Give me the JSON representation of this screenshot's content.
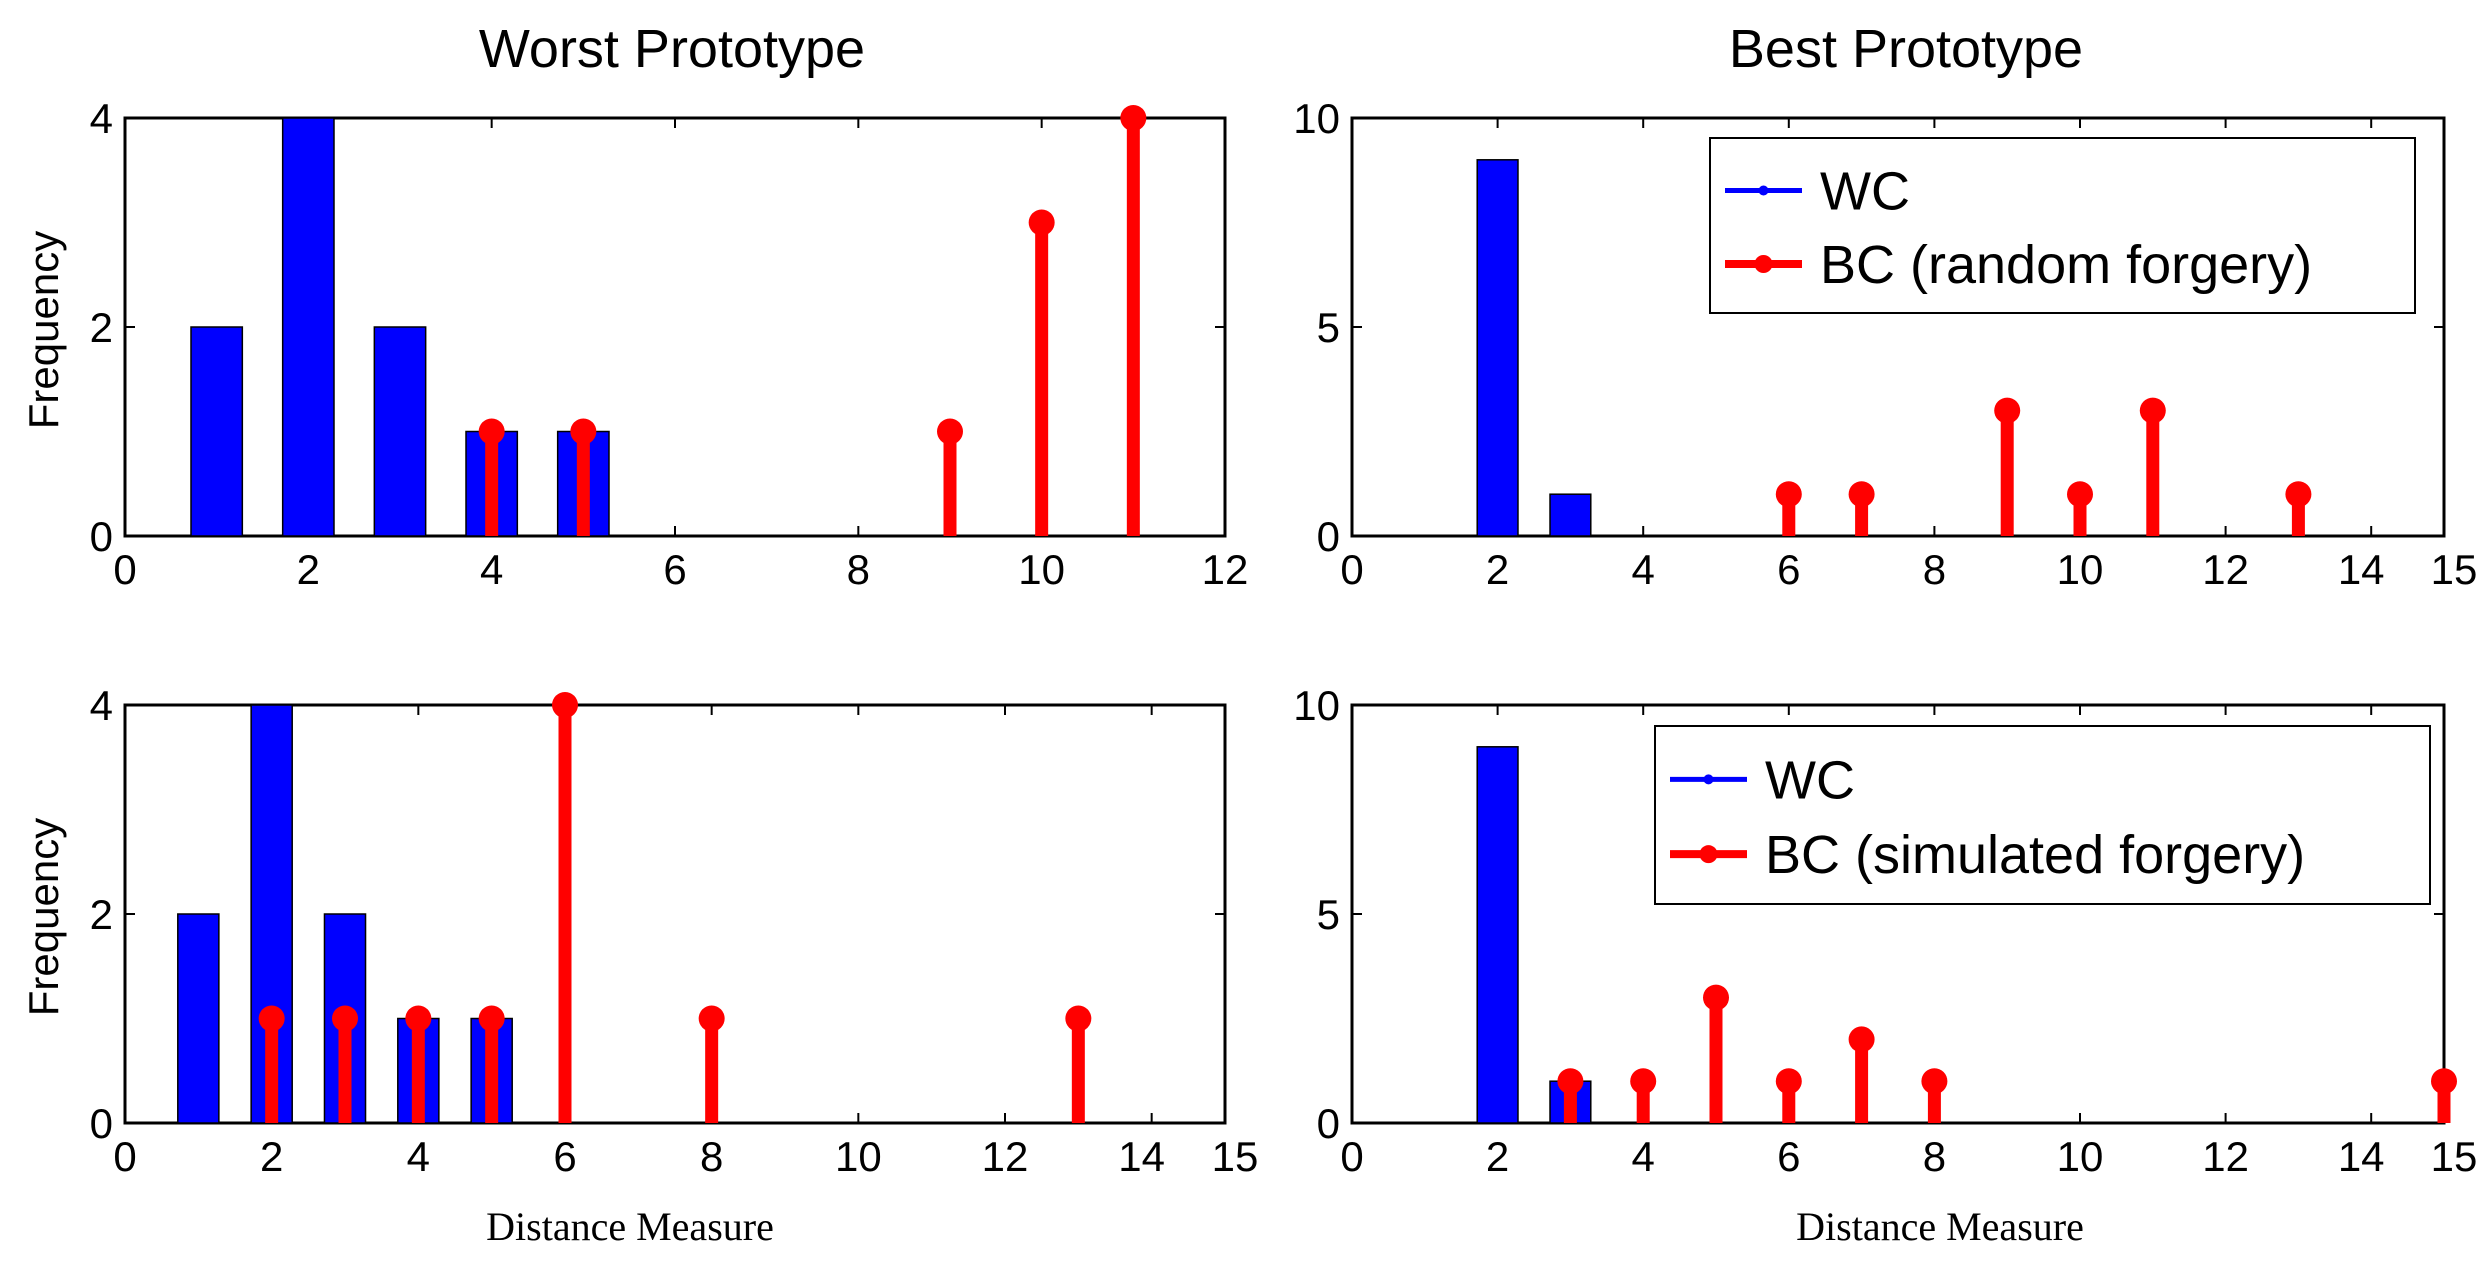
{
  "figure": {
    "col_titles": [
      "Worst Prototype",
      "Best Prototype"
    ],
    "ylabel": "Frequency",
    "xlabel": "Distance Measure"
  },
  "colors": {
    "wc": "#0000ff",
    "bc": "#ff0000",
    "axis": "#000000"
  },
  "chart_data": [
    {
      "id": "worst-random",
      "type": "bar",
      "title": "Worst Prototype",
      "ylabel": "Frequency",
      "xlabel": "",
      "xlim": [
        0,
        12
      ],
      "ylim": [
        0,
        4
      ],
      "xticks": [
        0,
        2,
        4,
        6,
        8,
        10,
        12
      ],
      "yticks": [
        0,
        2,
        4
      ],
      "legend": null,
      "series": [
        {
          "name": "WC",
          "kind": "bar",
          "color": "#0000ff",
          "x": [
            1,
            2,
            3,
            4,
            5
          ],
          "values": [
            2,
            4,
            2,
            1,
            1
          ]
        },
        {
          "name": "BC (random forgery)",
          "kind": "stem",
          "color": "#ff0000",
          "x": [
            4,
            5,
            9,
            10,
            11
          ],
          "values": [
            1,
            1,
            1,
            3,
            4
          ]
        }
      ]
    },
    {
      "id": "best-random",
      "type": "bar",
      "title": "Best Prototype",
      "ylabel": "",
      "xlabel": "",
      "xlim": [
        0,
        15
      ],
      "ylim": [
        0,
        10
      ],
      "xticks": [
        0,
        2,
        4,
        6,
        8,
        10,
        12,
        14,
        15
      ],
      "yticks": [
        0,
        5,
        10
      ],
      "legend": {
        "position": "top-right",
        "entries": [
          "WC",
          "BC (random forgery)"
        ]
      },
      "series": [
        {
          "name": "WC",
          "kind": "bar",
          "color": "#0000ff",
          "x": [
            2,
            3
          ],
          "values": [
            9,
            1
          ]
        },
        {
          "name": "BC (random forgery)",
          "kind": "stem",
          "color": "#ff0000",
          "x": [
            6,
            7,
            9,
            10,
            11,
            13
          ],
          "values": [
            1,
            1,
            3,
            1,
            3,
            1
          ]
        }
      ]
    },
    {
      "id": "worst-simulated",
      "type": "bar",
      "title": "",
      "ylabel": "Frequency",
      "xlabel": "Distance Measure",
      "xlim": [
        0,
        15
      ],
      "ylim": [
        0,
        4
      ],
      "xticks": [
        0,
        2,
        4,
        6,
        8,
        10,
        12,
        14,
        15
      ],
      "yticks": [
        0,
        2,
        4
      ],
      "legend": null,
      "series": [
        {
          "name": "WC",
          "kind": "bar",
          "color": "#0000ff",
          "x": [
            1,
            2,
            3,
            4,
            5
          ],
          "values": [
            2,
            4,
            2,
            1,
            1
          ]
        },
        {
          "name": "BC (simulated forgery)",
          "kind": "stem",
          "color": "#ff0000",
          "x": [
            2,
            3,
            4,
            5,
            6,
            8,
            13
          ],
          "values": [
            1,
            1,
            1,
            1,
            4,
            1,
            1
          ]
        }
      ]
    },
    {
      "id": "best-simulated",
      "type": "bar",
      "title": "",
      "ylabel": "",
      "xlabel": "Distance Measure",
      "xlim": [
        0,
        15
      ],
      "ylim": [
        0,
        10
      ],
      "xticks": [
        0,
        2,
        4,
        6,
        8,
        10,
        12,
        14,
        15
      ],
      "yticks": [
        0,
        5,
        10
      ],
      "legend": {
        "position": "top-right",
        "entries": [
          "WC",
          "BC (simulated forgery)"
        ]
      },
      "series": [
        {
          "name": "WC",
          "kind": "bar",
          "color": "#0000ff",
          "x": [
            2,
            3
          ],
          "values": [
            9,
            1
          ]
        },
        {
          "name": "BC (simulated forgery)",
          "kind": "stem",
          "color": "#ff0000",
          "x": [
            3,
            4,
            5,
            6,
            7,
            8,
            15
          ],
          "values": [
            1,
            1,
            3,
            1,
            2,
            1,
            1
          ]
        }
      ]
    }
  ]
}
